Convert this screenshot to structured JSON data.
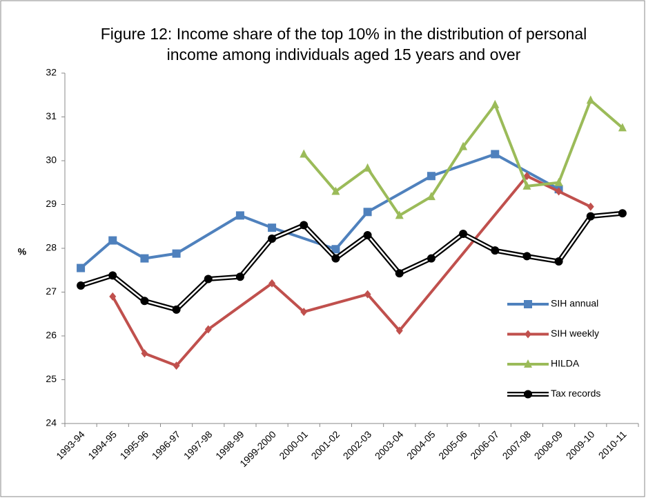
{
  "chart_data": {
    "type": "line",
    "title": "Figure 12: Income share of the top 10% in the distribution of personal income among individuals aged 15 years and over",
    "y_label": "%",
    "categories": [
      "1993-94",
      "1994-95",
      "1995-96",
      "1996-97",
      "1997-98",
      "1998-99",
      "1999-2000",
      "2000-01",
      "2001-02",
      "2002-03",
      "2003-04",
      "2004-05",
      "2005-06",
      "2006-07",
      "2007-08",
      "2008-09",
      "2009-10",
      "2010-11"
    ],
    "ylim": [
      24,
      32
    ],
    "yticks": [
      24,
      25,
      26,
      27,
      28,
      29,
      30,
      31,
      32
    ],
    "span_gaps": true,
    "series": [
      {
        "name": "SIH annual",
        "color": "#4f81bd",
        "marker": "square",
        "values": [
          27.55,
          28.18,
          27.77,
          27.88,
          null,
          28.75,
          28.47,
          null,
          27.98,
          28.83,
          null,
          29.65,
          null,
          30.15,
          null,
          29.35,
          null,
          null
        ]
      },
      {
        "name": "SIH weekly",
        "color": "#c0504d",
        "marker": "diamond",
        "values": [
          null,
          26.9,
          25.6,
          25.32,
          26.15,
          null,
          27.2,
          26.55,
          null,
          26.95,
          26.12,
          null,
          null,
          null,
          29.65,
          29.3,
          28.95,
          null
        ]
      },
      {
        "name": "HILDA",
        "color": "#9bbb59",
        "marker": "triangle",
        "values": [
          null,
          null,
          null,
          null,
          null,
          null,
          null,
          30.15,
          29.3,
          29.83,
          28.75,
          29.18,
          30.32,
          31.28,
          29.42,
          29.5,
          31.38,
          30.75
        ]
      },
      {
        "name": "Tax records",
        "color": "#000000",
        "marker": "circle",
        "values": [
          27.15,
          27.38,
          26.8,
          26.6,
          27.3,
          27.35,
          28.22,
          28.53,
          27.77,
          28.3,
          27.43,
          27.77,
          28.33,
          27.95,
          27.82,
          27.7,
          28.73,
          28.8
        ]
      }
    ]
  }
}
